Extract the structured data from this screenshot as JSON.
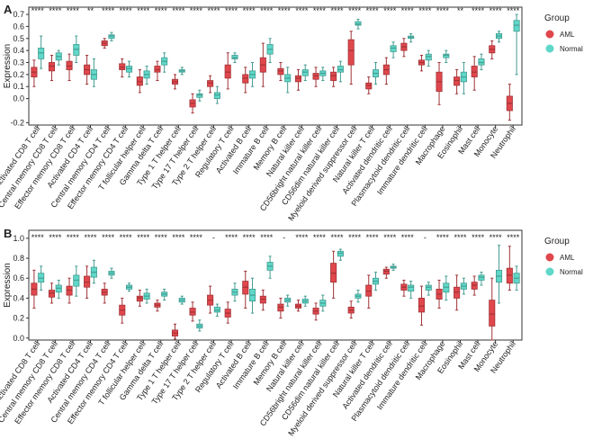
{
  "colors": {
    "AML": "#e0474c",
    "Normal": "#5fd8c9",
    "axis": "#333333"
  },
  "legend": {
    "title": "Group",
    "items": [
      "AML",
      "Normal"
    ]
  },
  "chart_data": [
    {
      "panel": "A",
      "type": "box",
      "ylabel": "Expression",
      "ylim": [
        -0.22,
        0.76
      ],
      "yticks": [
        -0.2,
        0.0,
        0.1,
        0.2,
        0.3,
        0.4,
        0.5,
        0.6,
        0.7
      ],
      "yticklabels": [
        "-0.2",
        "0.0",
        "0.1",
        "0.2",
        "0.3",
        "0.4",
        "0.5",
        "0.6",
        "0.7"
      ],
      "categories": [
        "Activated CD8 T cell",
        "Central memory CD8 T cell",
        "Effector memory CD8 T cell",
        "Activated CD4 T cell",
        "Central memory CD4 T cell",
        "Effector memory CD4 T cell",
        "T follicular helper cell",
        "Gamma delta T cell",
        "Type 1 T helper cell",
        "Type 17 T helper cell",
        "Type 2 T helper cell",
        "Regulatory T cell",
        "Activated B cell",
        "Immature B cell",
        "Memory B cell",
        "Natural killer cell",
        "CD56bright natural killer cell",
        "CD56dim natural killer cell",
        "Myeloid derived suppressor cell",
        "Natural killer T cell",
        "Activated dendritic cell",
        "Plasmacytoid dendritic cell",
        "Immature dendritic cell",
        "Macrophage",
        "Eosinophil",
        "Mast cell",
        "Monocyte",
        "Neutrophil"
      ],
      "significance": [
        "****",
        "****",
        "****",
        "**",
        "****",
        "****",
        "****",
        "****",
        "****",
        "****",
        "****",
        "****",
        "****",
        "****",
        "****",
        "****",
        "****",
        "****",
        "****",
        "****",
        "****",
        "****",
        "****",
        "****",
        "**",
        "****",
        "****",
        "****"
      ],
      "series": [
        {
          "name": "AML",
          "boxes": [
            [
              0.1,
              0.18,
              0.22,
              0.26,
              0.32
            ],
            [
              0.15,
              0.23,
              0.27,
              0.3,
              0.36
            ],
            [
              0.15,
              0.24,
              0.27,
              0.31,
              0.37
            ],
            [
              0.12,
              0.2,
              0.24,
              0.28,
              0.36
            ],
            [
              0.42,
              0.44,
              0.46,
              0.48,
              0.5
            ],
            [
              0.18,
              0.24,
              0.26,
              0.29,
              0.33
            ],
            [
              0.05,
              0.11,
              0.14,
              0.18,
              0.24
            ],
            [
              0.15,
              0.22,
              0.24,
              0.27,
              0.31
            ],
            [
              0.08,
              0.12,
              0.14,
              0.16,
              0.2
            ],
            [
              -0.12,
              -0.07,
              -0.04,
              -0.01,
              0.04
            ],
            [
              0.05,
              0.1,
              0.13,
              0.15,
              0.19
            ],
            [
              0.08,
              0.17,
              0.22,
              0.28,
              0.38
            ],
            [
              0.05,
              0.13,
              0.17,
              0.2,
              0.26
            ],
            [
              0.1,
              0.22,
              0.28,
              0.34,
              0.46
            ],
            [
              0.15,
              0.2,
              0.23,
              0.25,
              0.3
            ],
            [
              0.07,
              0.14,
              0.17,
              0.19,
              0.24
            ],
            [
              0.1,
              0.16,
              0.19,
              0.21,
              0.26
            ],
            [
              0.1,
              0.15,
              0.19,
              0.22,
              0.26
            ],
            [
              0.12,
              0.28,
              0.4,
              0.49,
              0.56
            ],
            [
              0.04,
              0.08,
              0.11,
              0.13,
              0.18
            ],
            [
              0.12,
              0.2,
              0.24,
              0.28,
              0.34
            ],
            [
              0.35,
              0.4,
              0.43,
              0.46,
              0.5
            ],
            [
              0.23,
              0.28,
              0.3,
              0.32,
              0.36
            ],
            [
              -0.05,
              0.06,
              0.14,
              0.22,
              0.3
            ],
            [
              0.04,
              0.11,
              0.15,
              0.18,
              0.24
            ],
            [
              0.07,
              0.18,
              0.22,
              0.27,
              0.35
            ],
            [
              0.33,
              0.38,
              0.41,
              0.44,
              0.48
            ],
            [
              -0.18,
              -0.1,
              -0.04,
              0.02,
              0.12
            ]
          ]
        },
        {
          "name": "Normal",
          "boxes": [
            [
              0.25,
              0.33,
              0.38,
              0.42,
              0.52
            ],
            [
              0.28,
              0.32,
              0.35,
              0.38,
              0.4
            ],
            [
              0.3,
              0.36,
              0.41,
              0.45,
              0.52
            ],
            [
              0.1,
              0.16,
              0.2,
              0.24,
              0.33
            ],
            [
              0.48,
              0.5,
              0.52,
              0.53,
              0.55
            ],
            [
              0.18,
              0.22,
              0.25,
              0.27,
              0.31
            ],
            [
              0.12,
              0.17,
              0.2,
              0.23,
              0.27
            ],
            [
              0.22,
              0.28,
              0.31,
              0.34,
              0.38
            ],
            [
              0.2,
              0.22,
              0.23,
              0.24,
              0.26
            ],
            [
              -0.02,
              0.01,
              0.03,
              0.04,
              0.07
            ],
            [
              -0.04,
              0.0,
              0.03,
              0.05,
              0.1
            ],
            [
              0.3,
              0.33,
              0.34,
              0.36,
              0.38
            ],
            [
              0.1,
              0.17,
              0.2,
              0.23,
              0.3
            ],
            [
              0.3,
              0.37,
              0.41,
              0.45,
              0.5
            ],
            [
              0.05,
              0.14,
              0.17,
              0.2,
              0.26
            ],
            [
              0.15,
              0.19,
              0.22,
              0.24,
              0.28
            ],
            [
              0.15,
              0.19,
              0.21,
              0.23,
              0.26
            ],
            [
              0.14,
              0.22,
              0.24,
              0.27,
              0.31
            ],
            [
              0.58,
              0.61,
              0.62,
              0.64,
              0.66
            ],
            [
              0.12,
              0.18,
              0.21,
              0.24,
              0.3
            ],
            [
              0.34,
              0.39,
              0.42,
              0.44,
              0.47
            ],
            [
              0.47,
              0.5,
              0.51,
              0.52,
              0.54
            ],
            [
              0.27,
              0.32,
              0.35,
              0.37,
              0.4
            ],
            [
              0.3,
              0.34,
              0.36,
              0.37,
              0.4
            ],
            [
              0.04,
              0.14,
              0.18,
              0.22,
              0.3
            ],
            [
              0.24,
              0.28,
              0.3,
              0.33,
              0.37
            ],
            [
              0.47,
              0.5,
              0.52,
              0.54,
              0.56
            ],
            [
              0.2,
              0.56,
              0.61,
              0.65,
              0.7
            ]
          ]
        }
      ]
    },
    {
      "panel": "B",
      "type": "box",
      "ylabel": "Expression",
      "ylim": [
        -0.02,
        1.08
      ],
      "yticks": [
        0.0,
        0.2,
        0.4,
        0.6,
        0.8,
        1.0
      ],
      "yticklabels": [
        "0.0",
        "0.2",
        "0.4",
        "0.6",
        "0.8",
        "1.0"
      ],
      "categories": [
        "Activated CD8 T cell",
        "Central memory CD8 T cell",
        "Effector memory CD8 T cell",
        "Activated CD4 T cell",
        "Central memory CD4 T cell",
        "Effector memory CD4 T cell",
        "T follicular helper cell",
        "Gamma delta T cell",
        "Type 1 T helper cell",
        "Type 17 T helper cell",
        "Type 2 T helper cell",
        "Regulatory T cell",
        "Activated B cell",
        "Immature B cell",
        "Memory B cell",
        "Natural killer cell",
        "CD56bright natural killer cell",
        "CD56dim natural killer cell",
        "Myeloid derived suppressor cell",
        "Natural killer T cell",
        "Activated dendritic cell",
        "Plasmacytoid dendritic cell",
        "Immature dendritic cell",
        "Macrophage",
        "Eosinophil",
        "Mast cell",
        "Monocyte",
        "Neutrophil"
      ],
      "significance": [
        "****",
        "****",
        "****",
        "****",
        "****",
        "****",
        "****",
        "****",
        "****",
        "****",
        "-",
        "****",
        "****",
        "****",
        "-",
        "****",
        "****",
        "****",
        "****",
        "****",
        "****",
        "****",
        "-",
        "****",
        "****",
        "****",
        "****",
        "****"
      ],
      "series": [
        {
          "name": "AML",
          "boxes": [
            [
              0.3,
              0.43,
              0.49,
              0.55,
              0.68
            ],
            [
              0.35,
              0.41,
              0.45,
              0.48,
              0.55
            ],
            [
              0.35,
              0.43,
              0.48,
              0.52,
              0.6
            ],
            [
              0.4,
              0.51,
              0.56,
              0.62,
              0.72
            ],
            [
              0.35,
              0.43,
              0.46,
              0.49,
              0.55
            ],
            [
              0.15,
              0.23,
              0.28,
              0.33,
              0.4
            ],
            [
              0.32,
              0.37,
              0.4,
              0.42,
              0.48
            ],
            [
              0.27,
              0.31,
              0.33,
              0.35,
              0.38
            ],
            [
              -0.01,
              0.02,
              0.05,
              0.08,
              0.14
            ],
            [
              0.17,
              0.23,
              0.26,
              0.3,
              0.36
            ],
            [
              0.25,
              0.33,
              0.38,
              0.43,
              0.52
            ],
            [
              0.15,
              0.21,
              0.25,
              0.29,
              0.36
            ],
            [
              0.3,
              0.44,
              0.51,
              0.57,
              0.67
            ],
            [
              0.28,
              0.35,
              0.39,
              0.42,
              0.48
            ],
            [
              0.2,
              0.27,
              0.31,
              0.34,
              0.4
            ],
            [
              0.27,
              0.3,
              0.32,
              0.34,
              0.38
            ],
            [
              0.18,
              0.24,
              0.27,
              0.3,
              0.35
            ],
            [
              0.4,
              0.56,
              0.65,
              0.75,
              0.87
            ],
            [
              0.2,
              0.25,
              0.28,
              0.31,
              0.37
            ],
            [
              0.3,
              0.42,
              0.47,
              0.53,
              0.63
            ],
            [
              0.6,
              0.64,
              0.67,
              0.69,
              0.71
            ],
            [
              0.42,
              0.48,
              0.51,
              0.54,
              0.58
            ],
            [
              0.13,
              0.26,
              0.32,
              0.4,
              0.52
            ],
            [
              0.3,
              0.39,
              0.44,
              0.49,
              0.58
            ],
            [
              0.28,
              0.4,
              0.46,
              0.51,
              0.63
            ],
            [
              0.43,
              0.49,
              0.53,
              0.56,
              0.62
            ],
            [
              -0.02,
              0.12,
              0.24,
              0.38,
              0.6
            ],
            [
              0.48,
              0.55,
              0.63,
              0.7,
              0.92
            ]
          ]
        },
        {
          "name": "Normal",
          "boxes": [
            [
              0.48,
              0.56,
              0.6,
              0.65,
              0.72
            ],
            [
              0.4,
              0.46,
              0.5,
              0.53,
              0.58
            ],
            [
              0.42,
              0.52,
              0.58,
              0.63,
              0.72
            ],
            [
              0.55,
              0.61,
              0.66,
              0.71,
              0.78
            ],
            [
              0.6,
              0.63,
              0.65,
              0.67,
              0.7
            ],
            [
              0.47,
              0.49,
              0.51,
              0.53,
              0.55
            ],
            [
              0.35,
              0.39,
              0.42,
              0.45,
              0.49
            ],
            [
              0.38,
              0.42,
              0.44,
              0.46,
              0.49
            ],
            [
              0.34,
              0.36,
              0.38,
              0.4,
              0.42
            ],
            [
              0.07,
              0.1,
              0.12,
              0.14,
              0.18
            ],
            [
              0.22,
              0.26,
              0.28,
              0.31,
              0.34
            ],
            [
              0.37,
              0.43,
              0.46,
              0.49,
              0.55
            ],
            [
              0.25,
              0.37,
              0.43,
              0.49,
              0.6
            ],
            [
              0.6,
              0.68,
              0.72,
              0.76,
              0.82
            ],
            [
              0.32,
              0.36,
              0.38,
              0.4,
              0.43
            ],
            [
              0.32,
              0.35,
              0.37,
              0.39,
              0.42
            ],
            [
              0.27,
              0.32,
              0.35,
              0.38,
              0.43
            ],
            [
              0.78,
              0.82,
              0.85,
              0.87,
              0.89
            ],
            [
              0.36,
              0.4,
              0.42,
              0.44,
              0.48
            ],
            [
              0.48,
              0.54,
              0.57,
              0.6,
              0.66
            ],
            [
              0.68,
              0.7,
              0.71,
              0.72,
              0.74
            ],
            [
              0.4,
              0.47,
              0.51,
              0.53,
              0.57
            ],
            [
              0.43,
              0.48,
              0.51,
              0.53,
              0.56
            ],
            [
              0.38,
              0.46,
              0.51,
              0.55,
              0.62
            ],
            [
              0.44,
              0.49,
              0.52,
              0.55,
              0.6
            ],
            [
              0.53,
              0.58,
              0.61,
              0.63,
              0.66
            ],
            [
              0.35,
              0.56,
              0.62,
              0.68,
              0.93
            ],
            [
              0.48,
              0.55,
              0.6,
              0.65,
              0.72
            ]
          ]
        }
      ]
    }
  ]
}
